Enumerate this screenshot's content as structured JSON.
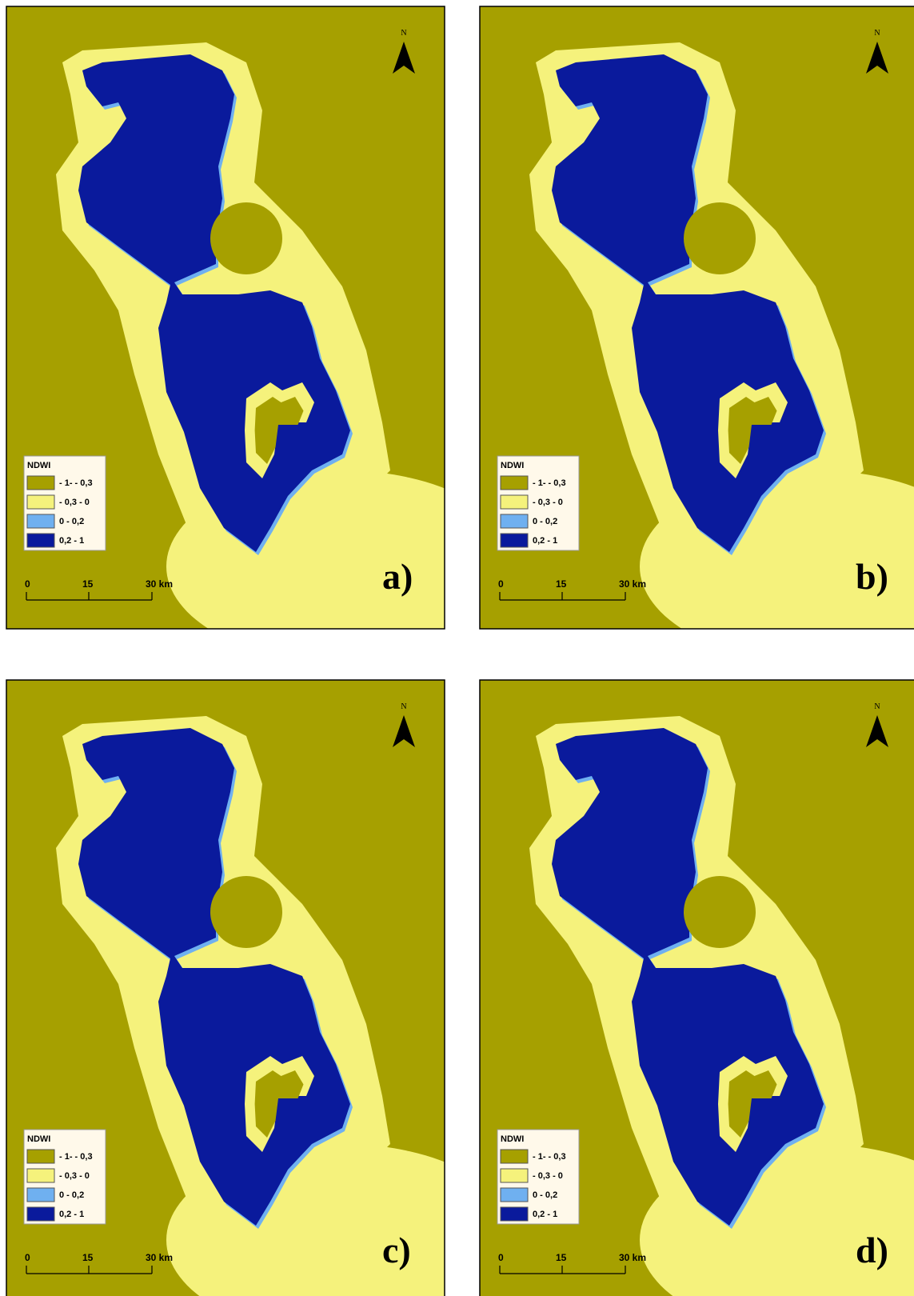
{
  "panels": [
    {
      "label": "a)",
      "north": "N",
      "legend": {
        "title": "NDWI",
        "items": [
          {
            "label": "- 1- - 0,3",
            "color": "#a6a000"
          },
          {
            "label": "- 0,3 - 0",
            "color": "#f5f27c"
          },
          {
            "label": "0 - 0,2",
            "color": "#6fb0f0"
          },
          {
            "label": "0,2 - 1",
            "color": "#0a1a9c"
          }
        ]
      },
      "scale": [
        "0",
        "15",
        "30 km"
      ]
    },
    {
      "label": "b)",
      "north": "N",
      "legend": {
        "title": "NDWI",
        "items": [
          {
            "label": "- 1- - 0,3",
            "color": "#a6a000"
          },
          {
            "label": "- 0,3 - 0",
            "color": "#f5f27c"
          },
          {
            "label": "0 - 0,2",
            "color": "#6fb0f0"
          },
          {
            "label": "0,2 - 1",
            "color": "#0a1a9c"
          }
        ]
      },
      "scale": [
        "0",
        "15",
        "30 km"
      ]
    },
    {
      "label": "c)",
      "north": "N",
      "legend": {
        "title": "NDWI",
        "items": [
          {
            "label": "- 1- - 0,3",
            "color": "#a6a000"
          },
          {
            "label": "- 0,3 - 0",
            "color": "#f5f27c"
          },
          {
            "label": "0 - 0,2",
            "color": "#6fb0f0"
          },
          {
            "label": "0,2 - 1",
            "color": "#0a1a9c"
          }
        ]
      },
      "scale": [
        "0",
        "15",
        "30 km"
      ]
    },
    {
      "label": "d)",
      "north": "N",
      "legend": {
        "title": "NDWI",
        "items": [
          {
            "label": "- 1- - 0,3",
            "color": "#a6a000"
          },
          {
            "label": "- 0,3 - 0",
            "color": "#f5f27c"
          },
          {
            "label": "0 - 0,2",
            "color": "#6fb0f0"
          },
          {
            "label": "0,2 - 1",
            "color": "#0a1a9c"
          }
        ]
      },
      "scale": [
        "0",
        "15",
        "30 km"
      ]
    }
  ]
}
